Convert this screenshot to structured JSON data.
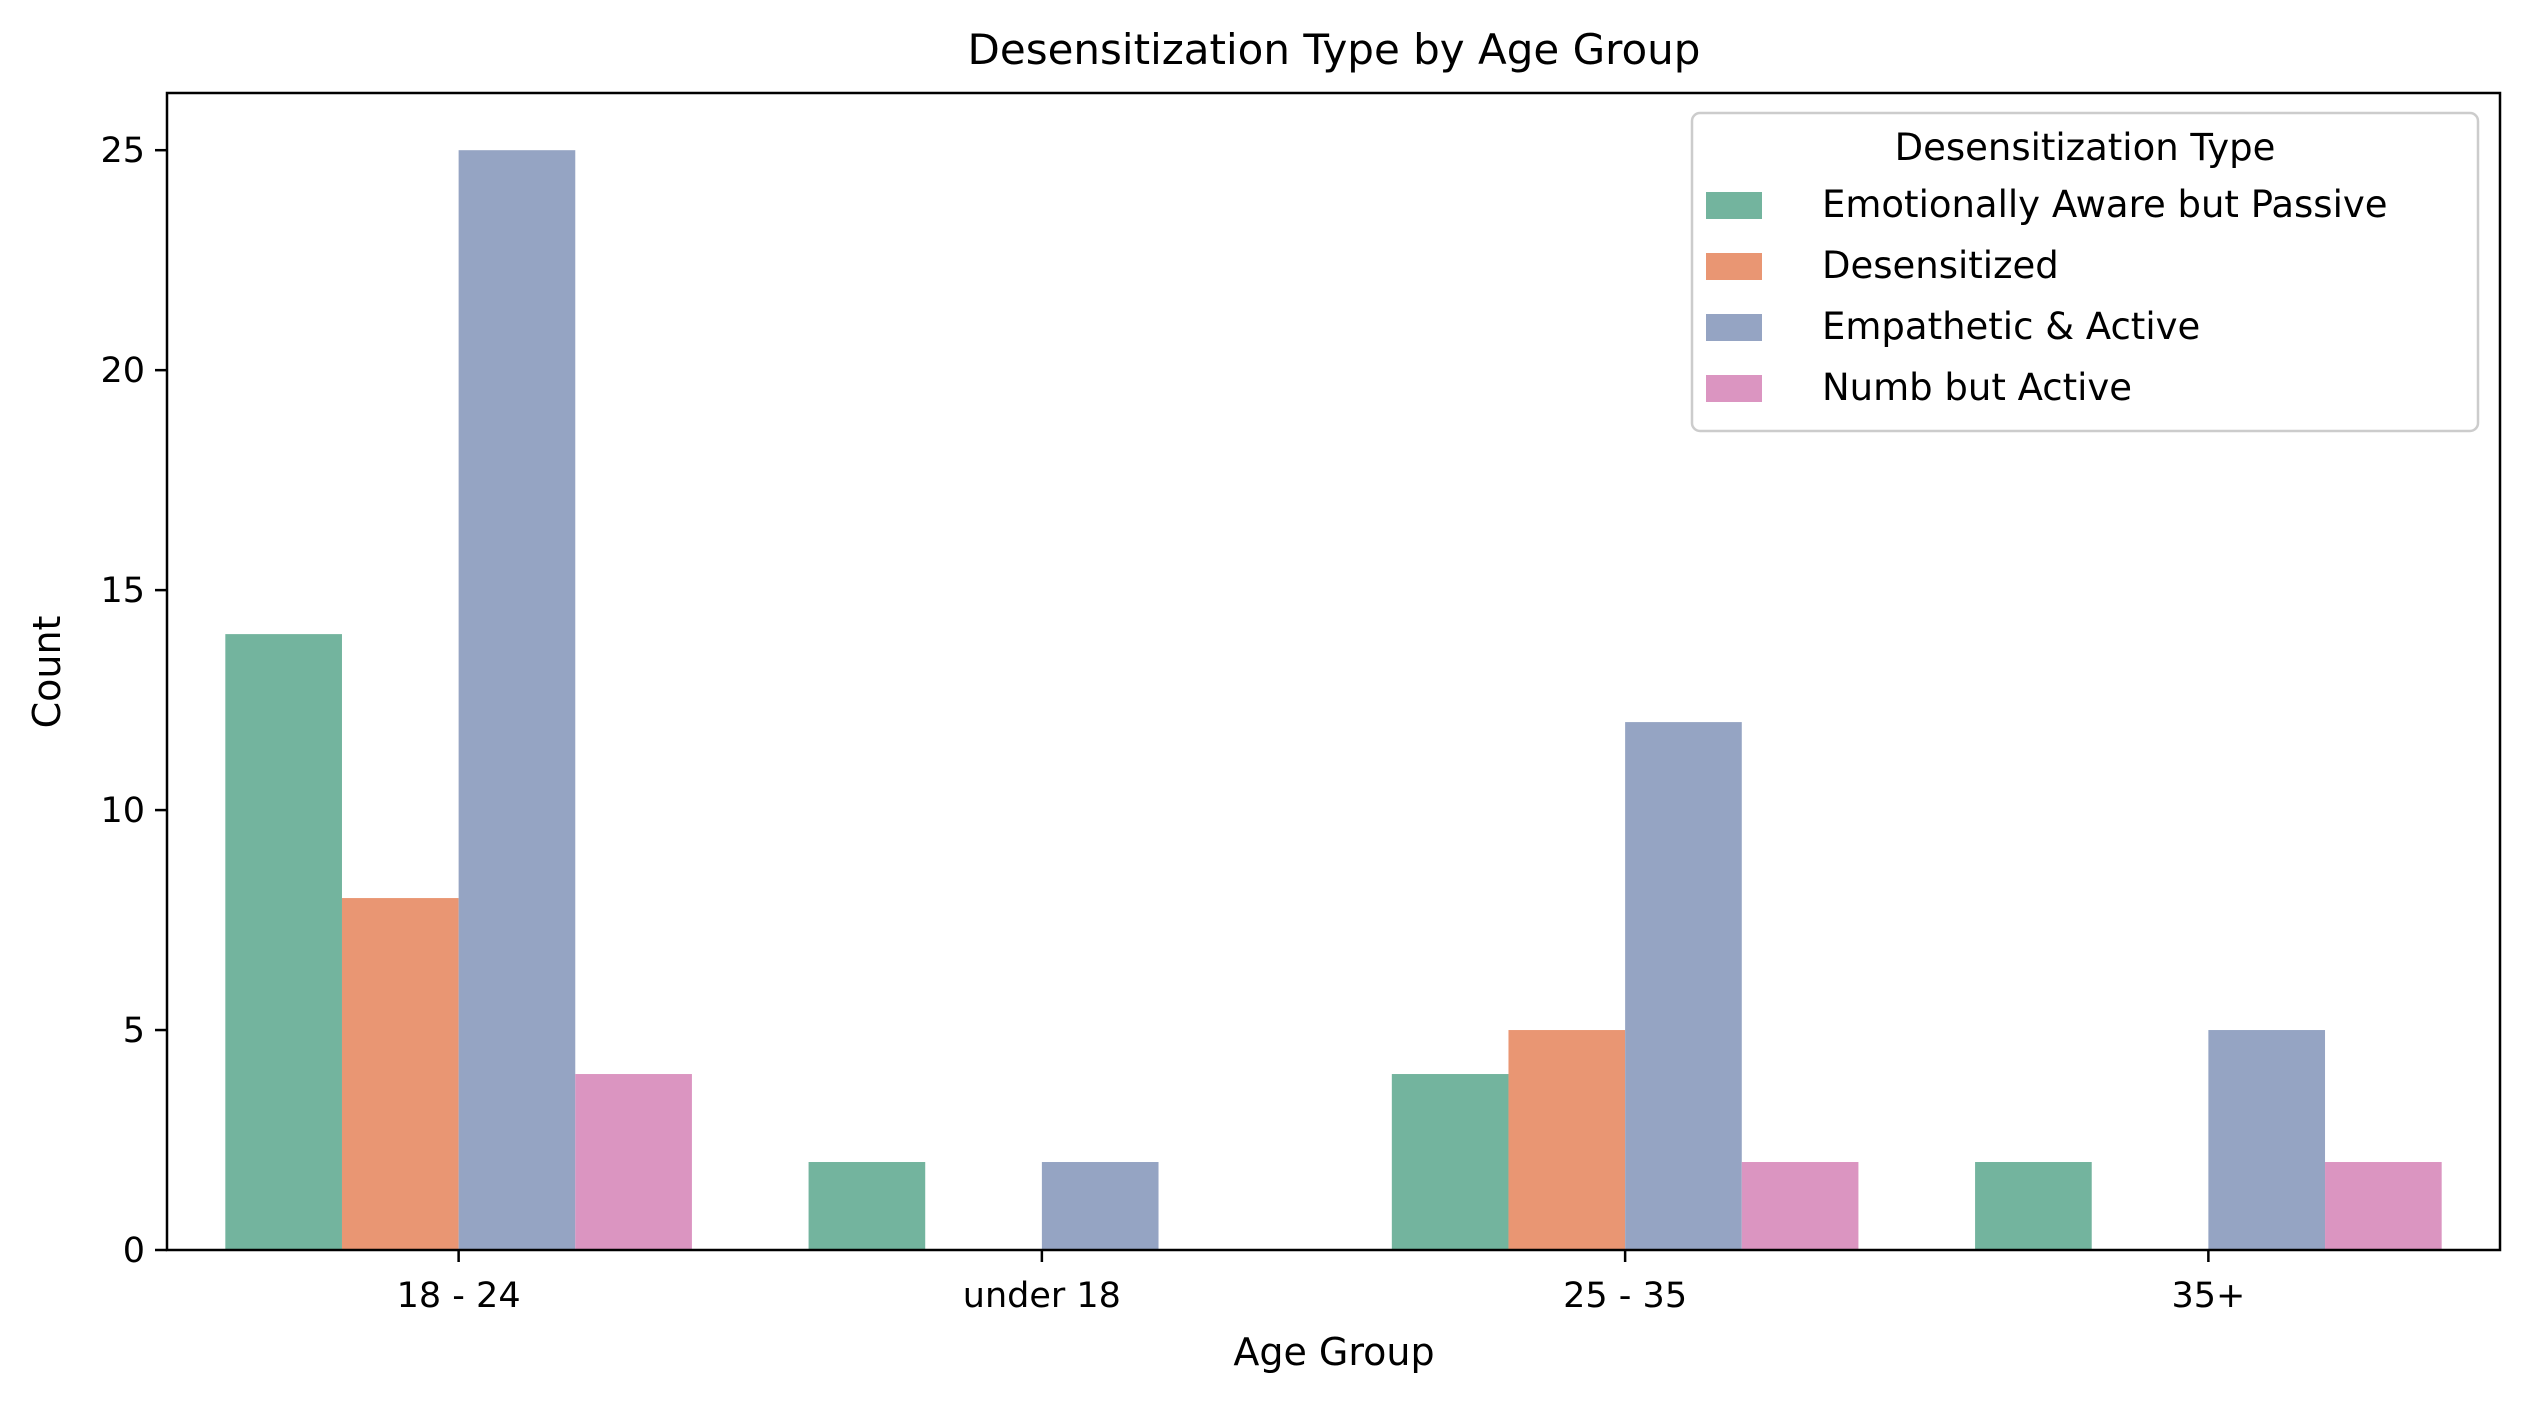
{
  "chart_data": {
    "type": "bar",
    "title": "Desensitization Type by Age Group",
    "xlabel": "Age Group",
    "ylabel": "Count",
    "categories": [
      "18 - 24",
      "under 18",
      "25 - 35",
      "35+"
    ],
    "ylim": [
      0,
      26.3
    ],
    "yticks": [
      0,
      5,
      10,
      15,
      20,
      25
    ],
    "grid": false,
    "legend": {
      "title": "Desensitization Type",
      "position": "top-right"
    },
    "series": [
      {
        "name": "Emotionally Aware but Passive",
        "color": "#73b49e",
        "values": [
          14,
          2,
          4,
          2
        ]
      },
      {
        "name": "Desensitized",
        "color": "#e99673",
        "values": [
          8,
          0,
          5,
          0
        ]
      },
      {
        "name": "Empathetic & Active",
        "color": "#95a4c3",
        "values": [
          25,
          2,
          12,
          5
        ]
      },
      {
        "name": "Numb but Active",
        "color": "#db95c1",
        "values": [
          4,
          0,
          2,
          2
        ]
      }
    ]
  }
}
